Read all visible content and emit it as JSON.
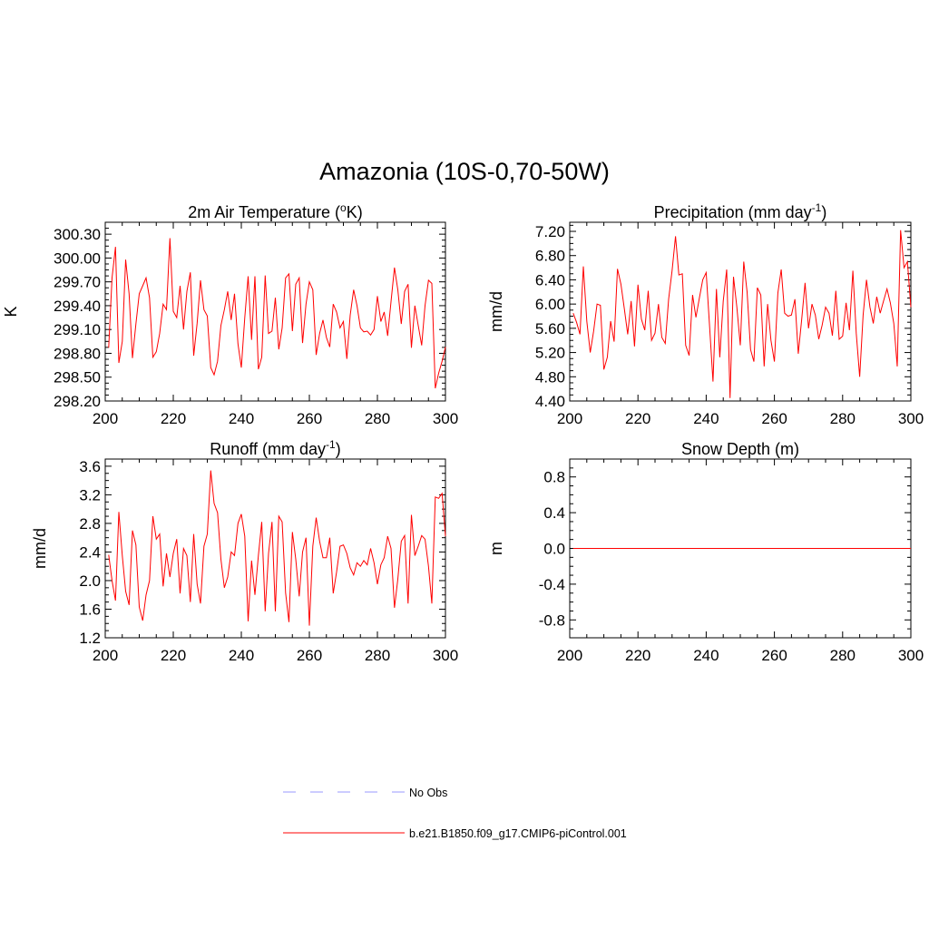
{
  "figure_title": "Amazonia (10S-0,70-50W)",
  "legend": [
    {
      "label": "No Obs",
      "color": "#9999ff",
      "dash": true
    },
    {
      "label": "b.e21.B1850.f09_g17.CMIP6-piControl.001",
      "color": "#ff0000",
      "dash": false
    }
  ],
  "chart_data": [
    {
      "type": "line",
      "title_main": "2m Air Temperature (",
      "title_sup": "o",
      "title_tail": "K)",
      "ylabel": "K",
      "xlabel": "",
      "xlim": [
        200,
        300
      ],
      "ylim": [
        298.2,
        300.45
      ],
      "xticks": [
        200,
        220,
        240,
        260,
        280,
        300
      ],
      "xtick_labels": [
        "200",
        "220",
        "240",
        "260",
        "280",
        "300"
      ],
      "yticks": [
        298.2,
        298.5,
        298.8,
        299.1,
        299.4,
        299.7,
        300.0,
        300.3
      ],
      "ytick_labels": [
        "298.20",
        "298.50",
        "298.80",
        "299.10",
        "299.40",
        "299.70",
        "300.00",
        "300.30"
      ],
      "x_start": 201,
      "series": [
        {
          "name": "b.e21.B1850.f09_g17.CMIP6-piControl.001",
          "color": "#ff0000",
          "values": [
            298.87,
            299.75,
            300.14,
            298.68,
            298.95,
            299.98,
            299.55,
            298.74,
            299.17,
            299.55,
            299.65,
            299.75,
            299.5,
            298.75,
            298.82,
            299.05,
            299.42,
            299.35,
            300.25,
            299.33,
            299.25,
            299.65,
            299.1,
            299.58,
            299.82,
            298.77,
            299.18,
            299.72,
            299.35,
            299.27,
            298.62,
            298.53,
            298.7,
            299.15,
            299.35,
            299.58,
            299.22,
            299.55,
            298.92,
            298.62,
            299.25,
            299.77,
            298.97,
            299.77,
            298.6,
            298.75,
            299.78,
            299.05,
            299.08,
            299.5,
            298.85,
            299.12,
            299.75,
            299.8,
            299.08,
            299.67,
            299.75,
            298.93,
            299.42,
            299.7,
            299.6,
            298.78,
            299.05,
            299.22,
            299.0,
            298.88,
            299.42,
            299.32,
            299.12,
            299.2,
            298.73,
            299.28,
            299.6,
            299.4,
            299.12,
            299.07,
            299.08,
            299.03,
            299.1,
            299.52,
            299.2,
            299.32,
            299.02,
            299.45,
            299.88,
            299.6,
            299.17,
            299.58,
            299.67,
            298.87,
            299.4,
            299.15,
            298.9,
            299.4,
            299.72,
            299.68,
            298.36,
            298.55,
            298.7,
            298.88
          ]
        }
      ]
    },
    {
      "type": "line",
      "title_main": "Precipitation (mm day",
      "title_sup": "-1",
      "title_tail": ")",
      "ylabel": "mm/d",
      "xlabel": "",
      "xlim": [
        200,
        300
      ],
      "ylim": [
        4.4,
        7.35
      ],
      "xticks": [
        200,
        220,
        240,
        260,
        280,
        300
      ],
      "xtick_labels": [
        "200",
        "220",
        "240",
        "260",
        "280",
        "300"
      ],
      "yticks": [
        4.4,
        4.8,
        5.2,
        5.6,
        6.0,
        6.4,
        6.8,
        7.2
      ],
      "ytick_labels": [
        "4.40",
        "4.80",
        "5.20",
        "5.60",
        "6.00",
        "6.40",
        "6.80",
        "7.20"
      ],
      "x_start": 201,
      "series": [
        {
          "name": "b.e21.B1850.f09_g17.CMIP6-piControl.001",
          "color": "#ff0000",
          "values": [
            5.85,
            5.7,
            5.5,
            6.62,
            5.72,
            5.2,
            5.55,
            6.0,
            5.98,
            4.92,
            5.12,
            5.72,
            5.38,
            6.58,
            6.33,
            5.92,
            5.5,
            6.05,
            5.3,
            6.32,
            5.75,
            5.57,
            6.22,
            5.4,
            5.52,
            6.0,
            5.45,
            5.35,
            6.08,
            6.55,
            7.12,
            6.48,
            6.5,
            5.32,
            5.15,
            6.15,
            5.78,
            6.1,
            6.4,
            6.52,
            5.62,
            4.72,
            6.25,
            5.12,
            6.05,
            6.57,
            4.45,
            6.45,
            5.95,
            5.32,
            6.7,
            6.2,
            5.25,
            5.05,
            6.27,
            6.15,
            4.97,
            6.0,
            5.4,
            5.05,
            6.18,
            6.57,
            5.85,
            5.8,
            5.82,
            6.08,
            5.18,
            5.75,
            6.35,
            5.6,
            6.0,
            5.82,
            5.42,
            5.65,
            5.95,
            5.85,
            5.48,
            6.22,
            5.42,
            5.47,
            6.02,
            5.57,
            6.55,
            5.52,
            4.8,
            5.82,
            6.4,
            5.95,
            5.68,
            6.12,
            5.85,
            6.05,
            6.25,
            6.02,
            5.68,
            4.97,
            7.22,
            6.6,
            6.7,
            5.95
          ]
        }
      ]
    },
    {
      "type": "line",
      "title_main": "Runoff (mm day",
      "title_sup": "-1",
      "title_tail": ")",
      "ylabel": "mm/d",
      "xlabel": "",
      "xlim": [
        200,
        300
      ],
      "ylim": [
        1.2,
        3.7
      ],
      "xticks": [
        200,
        220,
        240,
        260,
        280,
        300
      ],
      "xtick_labels": [
        "200",
        "220",
        "240",
        "260",
        "280",
        "300"
      ],
      "yticks": [
        1.2,
        1.6,
        2.0,
        2.4,
        2.8,
        3.2,
        3.6
      ],
      "ytick_labels": [
        "1.2",
        "1.6",
        "2.0",
        "2.4",
        "2.8",
        "3.2",
        "3.6"
      ],
      "x_start": 201,
      "series": [
        {
          "name": "b.e21.B1850.f09_g17.CMIP6-piControl.001",
          "color": "#ff0000",
          "values": [
            2.36,
            2.0,
            1.72,
            2.96,
            2.35,
            1.85,
            1.66,
            2.7,
            2.5,
            1.63,
            1.44,
            1.8,
            2.0,
            2.9,
            2.58,
            2.65,
            1.92,
            2.38,
            2.05,
            2.38,
            2.58,
            1.82,
            2.45,
            2.35,
            1.7,
            2.65,
            1.95,
            1.68,
            2.48,
            2.65,
            3.54,
            3.08,
            2.95,
            2.3,
            1.9,
            2.05,
            2.4,
            2.35,
            2.8,
            2.93,
            2.62,
            1.43,
            2.28,
            1.8,
            2.35,
            2.82,
            1.57,
            2.38,
            2.82,
            1.57,
            2.9,
            2.82,
            1.83,
            1.42,
            2.68,
            2.3,
            1.78,
            2.4,
            2.6,
            1.37,
            2.48,
            2.88,
            2.55,
            2.32,
            2.32,
            2.6,
            1.82,
            2.12,
            2.48,
            2.5,
            2.38,
            2.18,
            2.08,
            2.25,
            2.2,
            2.28,
            2.22,
            2.45,
            2.25,
            1.95,
            2.22,
            2.32,
            2.62,
            2.45,
            1.62,
            2.02,
            2.55,
            2.63,
            1.68,
            2.92,
            2.35,
            2.48,
            2.63,
            2.58,
            2.2,
            1.68,
            3.17,
            3.15,
            3.22,
            2.62
          ]
        }
      ]
    },
    {
      "type": "line",
      "title_main": "Snow Depth (m)",
      "title_sup": "",
      "title_tail": "",
      "ylabel": "m",
      "xlabel": "",
      "xlim": [
        200,
        300
      ],
      "ylim": [
        -1.0,
        1.0
      ],
      "xticks": [
        200,
        220,
        240,
        260,
        280,
        300
      ],
      "xtick_labels": [
        "200",
        "220",
        "240",
        "260",
        "280",
        "300"
      ],
      "yticks": [
        -0.8,
        -0.4,
        0.0,
        0.4,
        0.8
      ],
      "ytick_labels": [
        "-0.8",
        "-0.4",
        "0.0",
        "0.4",
        "0.8"
      ],
      "x_start": 201,
      "series": [
        {
          "name": "b.e21.B1850.f09_g17.CMIP6-piControl.001",
          "color": "#ff0000",
          "values": "zeros"
        }
      ]
    }
  ]
}
